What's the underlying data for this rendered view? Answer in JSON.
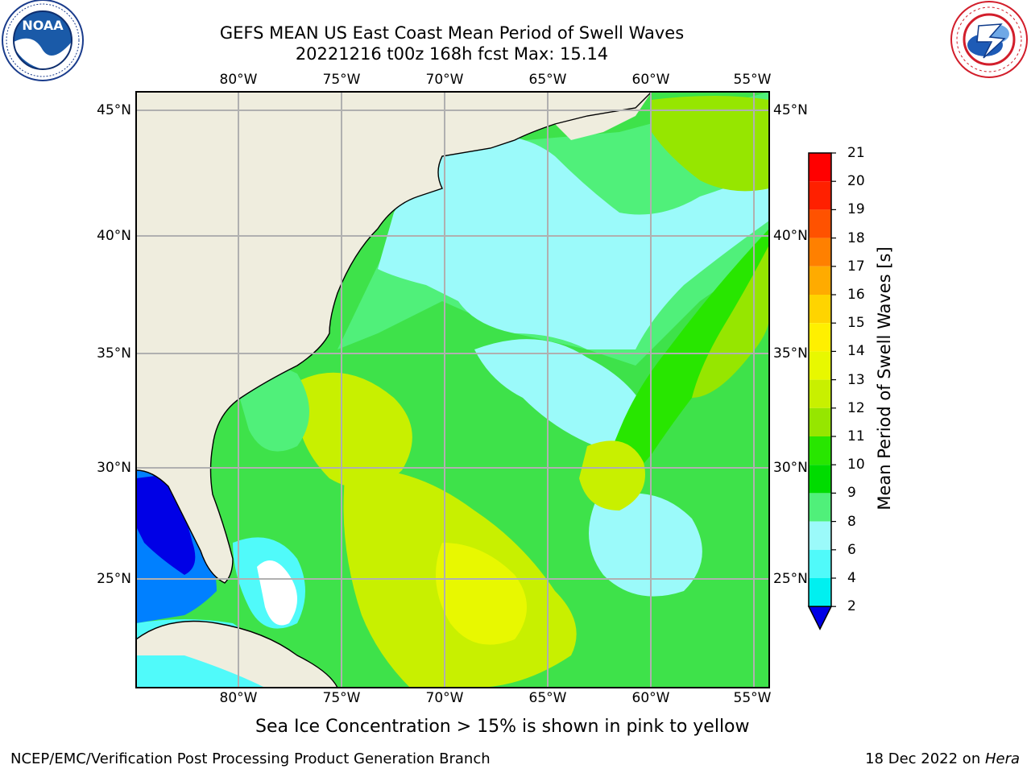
{
  "title": {
    "line1": "GEFS MEAN US East Coast Mean Period of Swell Waves",
    "line2": "20221216 t00z 168h fcst   Max: 15.14"
  },
  "logos": {
    "left": {
      "text": "NOAA",
      "icon": "noaa-logo",
      "ring_text": "NATIONAL OCEANIC AND ATMOSPHERIC ADMINISTRATION · U.S. DEPARTMENT OF COMMERCE"
    },
    "right": {
      "icon": "nws-logo",
      "ring_text": "NATIONAL WEATHER SERVICE"
    }
  },
  "map": {
    "longitude_ticks": [
      "80°W",
      "75°W",
      "70°W",
      "65°W",
      "60°W",
      "55°W"
    ],
    "latitude_ticks": [
      "45°N",
      "40°N",
      "35°N",
      "30°N",
      "25°N"
    ],
    "colors": {
      "land": "#efedde",
      "grid": "#b0b0b0",
      "coast": "#000000"
    }
  },
  "colorbar": {
    "title": "Mean Period of Swell Waves [s]",
    "levels": [
      "21",
      "20",
      "19",
      "18",
      "17",
      "16",
      "15",
      "14",
      "13",
      "12",
      "11",
      "10",
      "9",
      "8",
      "6",
      "4",
      "2"
    ],
    "colors": [
      "#ff0000",
      "#ff2000",
      "#ff5200",
      "#ff8000",
      "#ffab00",
      "#ffd400",
      "#fff000",
      "#e8f800",
      "#c8f000",
      "#96e600",
      "#28e600",
      "#00dc00",
      "#50f07a",
      "#9bfafa",
      "#50fafa",
      "#00f0f0",
      "#0080ff"
    ],
    "extend_color": "#0000e6"
  },
  "subnote": "Sea Ice Concentration > 15% is shown in pink to yellow",
  "footer": {
    "left": "NCEP/EMC/Verification Post Processing Product Generation Branch",
    "date": "18 Dec 2022 on ",
    "host": "Hera"
  }
}
